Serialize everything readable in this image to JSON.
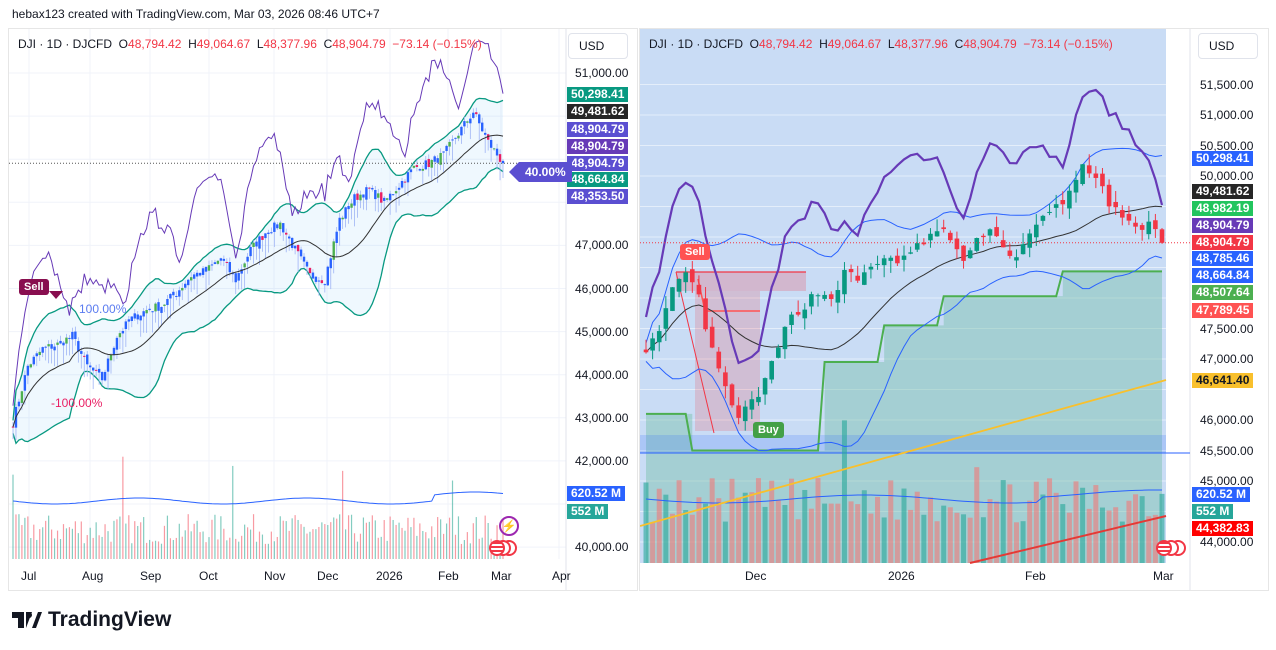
{
  "credit": "hebax123 created with TradingView.com, Mar 03, 2026 08:46 UTC+7",
  "legend": {
    "symbol": "DJI · 1D · DJCFD",
    "o_label": "O",
    "o": "48,794.42",
    "h_label": "H",
    "h": "49,064.67",
    "l_label": "L",
    "l": "48,377.96",
    "c_label": "C",
    "c": "48,904.79",
    "chg": "−73.14 (−0.15%)"
  },
  "currency": "USD",
  "left": {
    "y_ticks": [
      "51,000.00",
      "47,000.00",
      "46,000.00",
      "45,000.00",
      "44,000.00",
      "43,000.00",
      "42,000.00",
      "40,000.00"
    ],
    "x_ticks": [
      "Jul",
      "Aug",
      "Sep",
      "Oct",
      "Nov",
      "Dec",
      "2026",
      "Feb",
      "Mar",
      "Apr"
    ],
    "badges": [
      {
        "v": "50,298.41",
        "c": "#089981"
      },
      {
        "v": "49,481.62",
        "c": "#262626"
      },
      {
        "v": "48,904.79",
        "c": "#5b4fd1"
      },
      {
        "v": "48,904.79",
        "c": "#673ab7"
      },
      {
        "v": "48,904.79",
        "c": "#5b4fd1"
      },
      {
        "v": "48,664.84",
        "c": "#089981"
      },
      {
        "v": "48,353.50",
        "c": "#5b4fd1"
      }
    ],
    "vol_badges": [
      {
        "v": "620.52 M",
        "c": "#2962ff"
      },
      {
        "v": "552 M",
        "c": "#26a69a"
      }
    ],
    "pct_tag": "40.00%",
    "sell": "Sell",
    "pct_up": "100.00%",
    "pct_down": "-100.00%"
  },
  "right": {
    "y_ticks": [
      "51,500.00",
      "51,000.00",
      "50,500.00",
      "50,000.00",
      "47,500.00",
      "47,000.00",
      "46,000.00",
      "45,500.00",
      "45,000.00",
      "44,000.00"
    ],
    "x_ticks": [
      "Dec",
      "2026",
      "Feb",
      "Mar"
    ],
    "badges": [
      {
        "v": "50,298.41",
        "c": "#2962ff"
      },
      {
        "v": "49,481.62",
        "c": "#262626"
      },
      {
        "v": "48,982.19",
        "c": "#22c55e"
      },
      {
        "v": "48,904.79",
        "c": "#673ab7"
      },
      {
        "v": "48,904.79",
        "c": "#f23645"
      },
      {
        "v": "48,785.46",
        "c": "#2962ff"
      },
      {
        "v": "48,664.84",
        "c": "#2962ff"
      },
      {
        "v": "48,507.64",
        "c": "#4caf50"
      },
      {
        "v": "47,789.45",
        "c": "#ff5252"
      }
    ],
    "ma_badge": {
      "v": "46,641.40",
      "c": "#f9c02c"
    },
    "vol_badges": [
      {
        "v": "620.52 M",
        "c": "#2962ff"
      },
      {
        "v": "552 M",
        "c": "#26a69a"
      },
      {
        "v": "44,382.83",
        "c": "#ff0000"
      }
    ],
    "sell": "Sell",
    "buy": "Buy"
  },
  "logo": "TradingView",
  "colors": {
    "up": "#089981",
    "down": "#f23645",
    "blue": "#2962ff",
    "purple": "#673ab7"
  },
  "chart_data": [
    {
      "type": "candlestick",
      "title": "DJI · 1D · DJCFD",
      "period": "Jul 2025 – Mar 2026 (weekly approx closes)",
      "ylim": [
        39700,
        51600
      ],
      "closes": [
        42900,
        44200,
        44600,
        44700,
        44900,
        44200,
        43900,
        44900,
        45300,
        45500,
        45600,
        45900,
        46300,
        46400,
        46700,
        46200,
        46900,
        47300,
        47500,
        46900,
        46300,
        46200,
        47600,
        48100,
        48300,
        48000,
        48400,
        48800,
        48900,
        49100,
        49600,
        50100,
        49400,
        48904.79
      ]
    },
    {
      "type": "candlestick",
      "title": "DJI · 1D · DJCFD",
      "period": "Nov 2025 – Mar 2026 (2-day approx closes)",
      "ylim": [
        43700,
        51800
      ],
      "closes": [
        47200,
        47400,
        48100,
        48400,
        48000,
        47100,
        46500,
        46000,
        46300,
        46600,
        47200,
        47700,
        47900,
        48100,
        48000,
        48400,
        48300,
        48500,
        48700,
        48500,
        48800,
        48900,
        49100,
        49000,
        48600,
        48900,
        49200,
        48800,
        48700,
        49000,
        49300,
        49500,
        49700,
        50200,
        50000,
        49500,
        49300,
        49100,
        49300,
        48904.79
      ]
    }
  ]
}
